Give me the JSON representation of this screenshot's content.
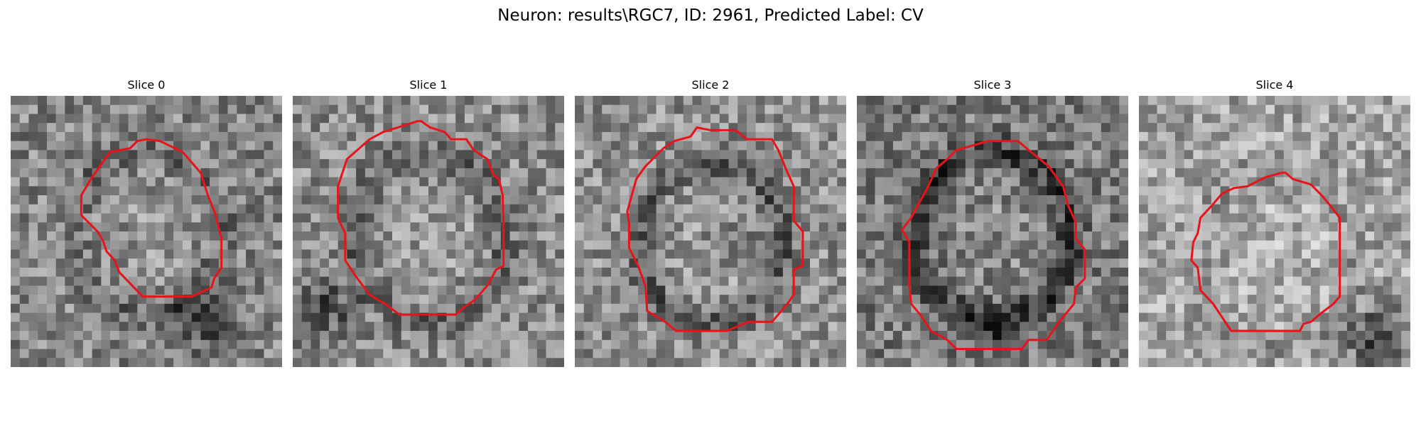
{
  "figure": {
    "title": "Neuron: results\\RGC7, ID: 2961, Predicted Label: CV",
    "contour_color": "#e8141c"
  },
  "panels": [
    {
      "title": "Slice 0"
    },
    {
      "title": "Slice 1"
    },
    {
      "title": "Slice 2"
    },
    {
      "title": "Slice 3"
    },
    {
      "title": "Slice 4"
    }
  ]
}
